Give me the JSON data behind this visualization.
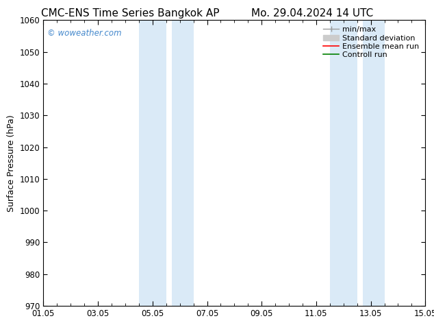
{
  "title_left": "CMC-ENS Time Series Bangkok AP",
  "title_right": "Mo. 29.04.2024 14 UTC",
  "ylabel": "Surface Pressure (hPa)",
  "ylim": [
    970,
    1060
  ],
  "yticks": [
    970,
    980,
    990,
    1000,
    1010,
    1020,
    1030,
    1040,
    1050,
    1060
  ],
  "xlim": [
    0,
    14
  ],
  "xtick_labels": [
    "01.05",
    "03.05",
    "05.05",
    "07.05",
    "09.05",
    "11.05",
    "13.05",
    "15.05"
  ],
  "xtick_positions": [
    0,
    2,
    4,
    6,
    8,
    10,
    12,
    14
  ],
  "shaded_bands": [
    {
      "x_start": 3.5,
      "x_end": 4.5
    },
    {
      "x_start": 4.7,
      "x_end": 5.5
    },
    {
      "x_start": 10.5,
      "x_end": 11.5
    },
    {
      "x_start": 11.7,
      "x_end": 12.5
    }
  ],
  "shaded_color": "#daeaf7",
  "watermark_text": "© woweather.com",
  "watermark_color": "#4488cc",
  "background_color": "#ffffff",
  "title_fontsize": 11,
  "tick_fontsize": 8.5,
  "ylabel_fontsize": 9,
  "legend_fontsize": 8
}
